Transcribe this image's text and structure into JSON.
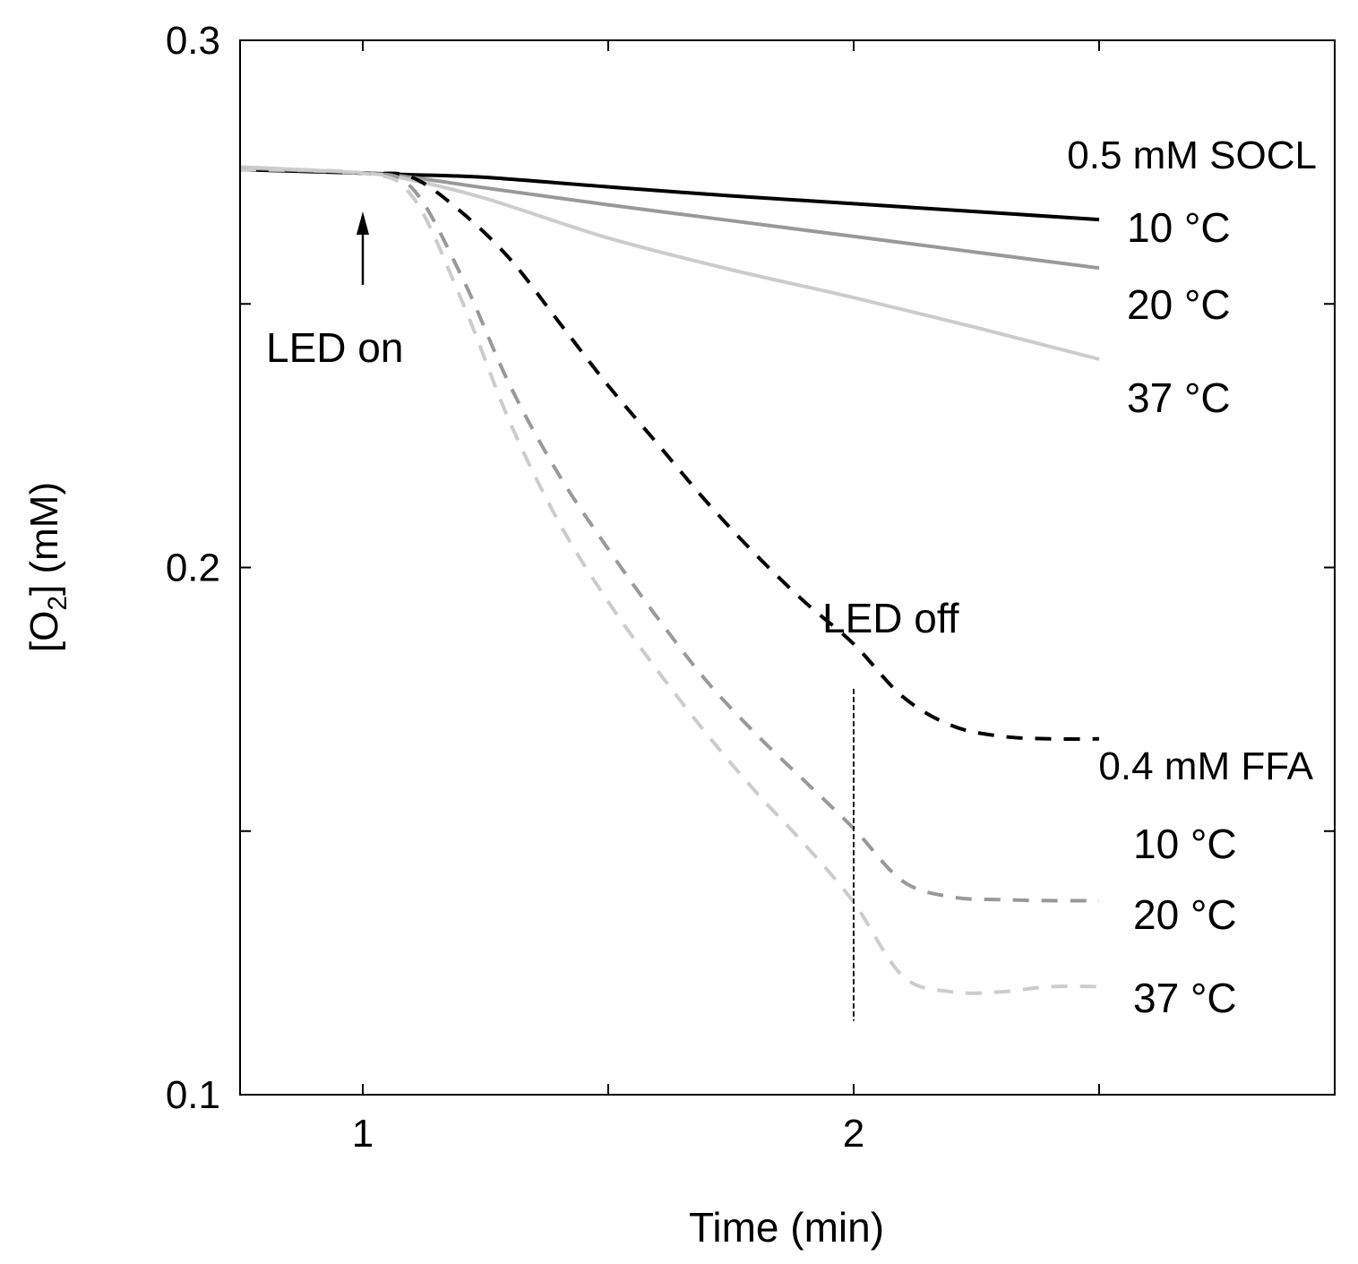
{
  "chart_data": {
    "type": "line",
    "xlabel": "Time (min)",
    "ylabel_main": "[O",
    "ylabel_sub": "2",
    "ylabel_end": "] (mM)",
    "xlim": [
      0.75,
      2.98
    ],
    "ylim": [
      0.1,
      0.3
    ],
    "x_ticks": [
      1,
      1.5,
      2,
      2.5
    ],
    "x_tick_labels": [
      "1",
      "",
      "2",
      ""
    ],
    "y_ticks": [
      0.1,
      0.15,
      0.2,
      0.25,
      0.3
    ],
    "y_tick_labels": [
      "0.1",
      "",
      "0.2",
      "",
      "0.3"
    ],
    "groups": [
      {
        "name": "0.5 mM SOCL",
        "style": "solid"
      },
      {
        "name": "0.4 mM FFA",
        "style": "dashed"
      }
    ],
    "series": [
      {
        "group": "0.5 mM SOCL",
        "name": "10 °C",
        "color": "#000000",
        "dashed": false,
        "x": [
          0.75,
          1.0,
          1.1,
          1.25,
          1.5,
          1.75,
          2.0,
          2.25,
          2.5
        ],
        "y": [
          0.2755,
          0.2748,
          0.2745,
          0.274,
          0.2722,
          0.2705,
          0.269,
          0.2675,
          0.266
        ]
      },
      {
        "group": "0.5 mM SOCL",
        "name": "20 °C",
        "color": "#999999",
        "dashed": false,
        "x": [
          0.75,
          1.0,
          1.1,
          1.25,
          1.5,
          1.75,
          2.0,
          2.25,
          2.5
        ],
        "y": [
          0.2758,
          0.2748,
          0.274,
          0.272,
          0.2688,
          0.2658,
          0.2628,
          0.2598,
          0.2568
        ]
      },
      {
        "group": "0.5 mM SOCL",
        "name": "37 °C",
        "color": "#cccccc",
        "dashed": false,
        "x": [
          0.75,
          1.0,
          1.1,
          1.25,
          1.5,
          1.75,
          2.0,
          2.25,
          2.5
        ],
        "y": [
          0.276,
          0.2748,
          0.2735,
          0.27,
          0.2625,
          0.2565,
          0.2512,
          0.2455,
          0.2395
        ]
      },
      {
        "group": "0.4 mM FFA",
        "name": "10 °C",
        "color": "#000000",
        "dashed": true,
        "x": [
          0.75,
          1.0,
          1.1,
          1.2,
          1.3,
          1.4,
          1.5,
          1.6,
          1.7,
          1.8,
          1.9,
          2.0,
          2.1,
          2.2,
          2.3,
          2.4,
          2.5
        ],
        "y": [
          0.2755,
          0.2748,
          0.274,
          0.2675,
          0.2585,
          0.2465,
          0.2345,
          0.2235,
          0.2125,
          0.2025,
          0.1935,
          0.1855,
          0.1755,
          0.17,
          0.168,
          0.1675,
          0.1675
        ]
      },
      {
        "group": "0.4 mM FFA",
        "name": "20 °C",
        "color": "#999999",
        "dashed": true,
        "x": [
          0.75,
          1.0,
          1.1,
          1.2,
          1.3,
          1.4,
          1.5,
          1.6,
          1.7,
          1.8,
          1.9,
          2.0,
          2.1,
          2.2,
          2.3,
          2.4,
          2.5
        ],
        "y": [
          0.2755,
          0.2748,
          0.272,
          0.2555,
          0.2345,
          0.2175,
          0.2035,
          0.1905,
          0.1785,
          0.1685,
          0.1595,
          0.1505,
          0.1405,
          0.1375,
          0.137,
          0.1368,
          0.1368
        ]
      },
      {
        "group": "0.4 mM FFA",
        "name": "37 °C",
        "color": "#cccccc",
        "dashed": true,
        "x": [
          0.75,
          1.0,
          1.1,
          1.2,
          1.3,
          1.4,
          1.5,
          1.6,
          1.7,
          1.8,
          1.9,
          2.0,
          2.1,
          2.2,
          2.3,
          2.4,
          2.5
        ],
        "y": [
          0.2755,
          0.2748,
          0.2705,
          0.251,
          0.2275,
          0.2085,
          0.1935,
          0.1805,
          0.1685,
          0.1575,
          0.1475,
          0.1365,
          0.1225,
          0.1195,
          0.1195,
          0.1205,
          0.1205
        ]
      }
    ],
    "annotations": {
      "led_on": {
        "text": "LED on",
        "x": 1.0
      },
      "led_off": {
        "text": "LED off",
        "x": 2.0,
        "y_range": [
          0.114,
          0.177
        ]
      }
    }
  }
}
